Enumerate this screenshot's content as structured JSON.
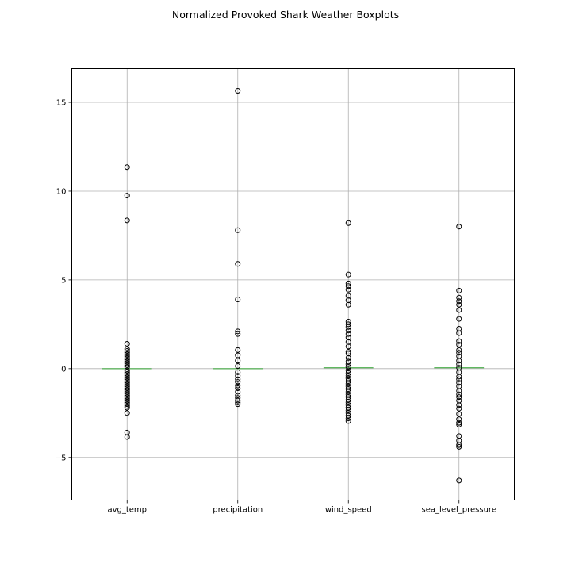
{
  "chart_data": {
    "type": "box",
    "title": "Normalized Provoked Shark Weather Boxplots",
    "xlabel": "",
    "ylabel": "",
    "categories": [
      "avg_temp",
      "precipitation",
      "wind_speed",
      "sea_level_pressure"
    ],
    "ylim": [
      -7.4,
      16.9
    ],
    "yticks": [
      -5,
      0,
      5,
      10,
      15
    ],
    "ytick_labels": [
      "−5",
      "0",
      "5",
      "10",
      "15"
    ],
    "grid": true,
    "boxes": [
      {
        "category": "avg_temp",
        "median": 0.0,
        "outliers": [
          11.35,
          9.75,
          8.35,
          1.4,
          1.1,
          1.0,
          0.9,
          0.8,
          0.7,
          0.6,
          0.5,
          0.4,
          0.3,
          0.2,
          0.1,
          -0.1,
          -0.2,
          -0.3,
          -0.4,
          -0.5,
          -0.6,
          -0.7,
          -0.8,
          -0.9,
          -1.0,
          -1.1,
          -1.2,
          -1.3,
          -1.4,
          -1.5,
          -1.6,
          -1.7,
          -1.8,
          -1.9,
          -2.0,
          -2.1,
          -2.2,
          -2.5,
          -3.6,
          -3.85
        ]
      },
      {
        "category": "precipitation",
        "median": 0.0,
        "outliers": [
          15.65,
          7.8,
          5.9,
          3.9,
          2.1,
          1.95,
          1.05,
          0.75,
          0.45,
          0.15,
          -0.2,
          -0.4,
          -0.6,
          -0.75,
          -0.95,
          -1.1,
          -1.3,
          -1.5,
          -1.65,
          -1.8,
          -1.9,
          -2.0
        ]
      },
      {
        "category": "wind_speed",
        "median": 0.05,
        "outliers": [
          8.2,
          5.3,
          4.8,
          4.65,
          4.45,
          4.1,
          3.85,
          3.6,
          2.65,
          2.5,
          2.35,
          2.15,
          1.95,
          1.75,
          1.5,
          1.25,
          0.95,
          0.85,
          0.6,
          0.4,
          0.25,
          0.1,
          -0.1,
          -0.25,
          -0.4,
          -0.55,
          -0.7,
          -0.85,
          -1.0,
          -1.15,
          -1.3,
          -1.45,
          -1.6,
          -1.75,
          -1.9,
          -2.05,
          -2.2,
          -2.35,
          -2.5,
          -2.65,
          -2.8,
          -2.95
        ]
      },
      {
        "category": "sea_level_pressure",
        "median": 0.05,
        "outliers": [
          8.0,
          4.4,
          4.0,
          3.8,
          3.6,
          3.3,
          2.8,
          2.25,
          2.0,
          1.55,
          1.35,
          1.05,
          0.9,
          0.7,
          0.45,
          0.25,
          0.05,
          -0.2,
          -0.45,
          -0.6,
          -0.8,
          -1.0,
          -1.25,
          -1.45,
          -1.6,
          -1.8,
          -2.05,
          -2.25,
          -2.55,
          -2.85,
          -3.05,
          -3.15,
          -3.8,
          -4.05,
          -4.3,
          -4.4,
          -6.3
        ]
      }
    ],
    "colors": {
      "median": "#2ca02c",
      "outlier_edge": "#000000",
      "grid": "#b0b0b0",
      "axes": "#000000"
    }
  }
}
